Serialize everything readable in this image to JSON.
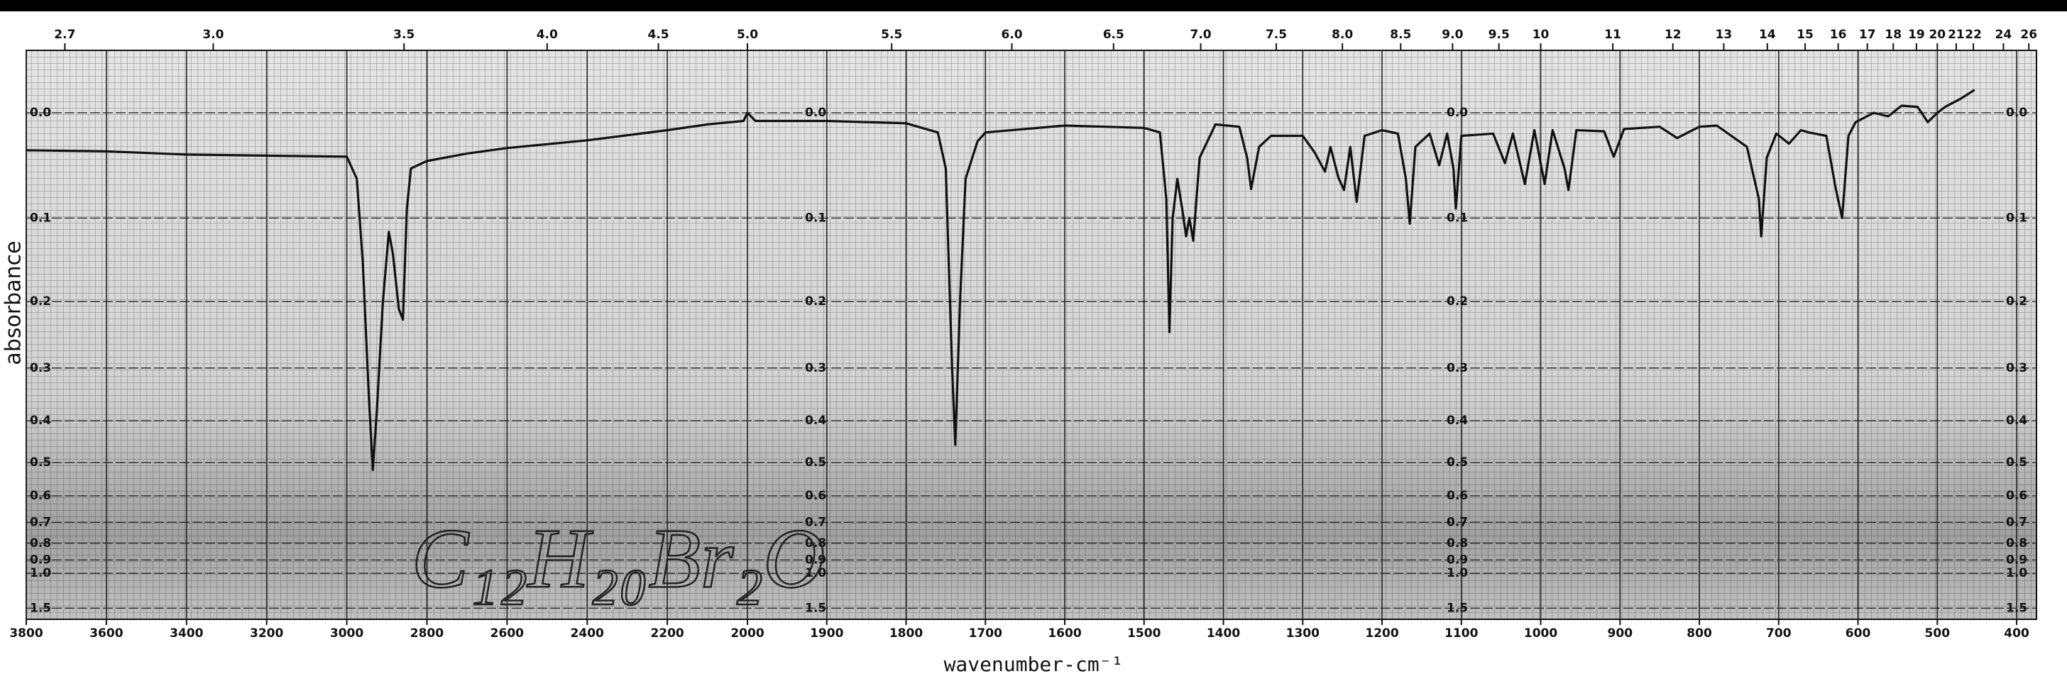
{
  "chart_data": {
    "type": "line",
    "xlabel": "wavenumber-cm⁻¹",
    "ylabel": "absorbance",
    "annotation": "C₁₂H₂₀Br₂O",
    "color": "#111111",
    "y_scale": "transmittance",
    "xlim": [
      3800,
      375
    ],
    "x_scale_break": 2000,
    "xticks": [
      3800,
      3600,
      3400,
      3200,
      3000,
      2800,
      2600,
      2400,
      2200,
      2000,
      1900,
      1800,
      1700,
      1600,
      1500,
      1400,
      1300,
      1200,
      1100,
      1000,
      900,
      800,
      700,
      600,
      500,
      400
    ],
    "x2ticks": [
      2.7,
      {
        "value": 3.0,
        "label": "3.0"
      },
      3.5,
      {
        "value": 4.0,
        "label": "4.0"
      },
      4.5,
      {
        "value": 5.0,
        "label": "5.0"
      },
      5.5,
      {
        "value": 6.0,
        "label": "6.0"
      },
      6.5,
      {
        "value": 7.0,
        "label": "7.0"
      },
      7.5,
      {
        "value": 8.0,
        "label": "8.0"
      },
      8.5,
      {
        "value": 9.0,
        "label": "9.0"
      },
      9.5,
      10,
      11,
      12,
      13,
      14,
      15,
      16,
      17,
      18,
      19,
      20,
      21,
      22,
      24,
      26
    ],
    "ylim": [
      -0.05,
      2
    ],
    "yticks": [
      {
        "value": 0,
        "label": "0.0"
      },
      0.1,
      0.2,
      0.3,
      0.4,
      0.5,
      0.6,
      0.7,
      0.8,
      0.9,
      {
        "value": 1,
        "label": "1.0"
      },
      1.5
    ],
    "grid": true,
    "x": [
      3800,
      3600,
      3400,
      3200,
      3000,
      2975,
      2960,
      2945,
      2935,
      2925,
      2910,
      2895,
      2885,
      2870,
      2860,
      2850,
      2840,
      2800,
      2700,
      2600,
      2400,
      2200,
      2100,
      2010,
      2000,
      1990,
      1900,
      1800,
      1760,
      1750,
      1742,
      1738,
      1732,
      1725,
      1710,
      1700,
      1600,
      1500,
      1480,
      1472,
      1468,
      1464,
      1458,
      1452,
      1447,
      1443,
      1438,
      1430,
      1410,
      1380,
      1370,
      1365,
      1355,
      1340,
      1300,
      1285,
      1272,
      1265,
      1255,
      1248,
      1240,
      1232,
      1222,
      1200,
      1180,
      1170,
      1165,
      1158,
      1140,
      1128,
      1118,
      1110,
      1107,
      1100,
      1060,
      1045,
      1035,
      1020,
      1008,
      995,
      985,
      970,
      965,
      955,
      920,
      908,
      895,
      850,
      828,
      800,
      778,
      740,
      725,
      722,
      715,
      703,
      687,
      672,
      662,
      640,
      628,
      620,
      612,
      603,
      580,
      562,
      545,
      525,
      512,
      500,
      490,
      470,
      453
    ],
    "values": [
      0.033,
      0.034,
      0.037,
      0.038,
      0.039,
      0.06,
      0.15,
      0.35,
      0.52,
      0.38,
      0.2,
      0.115,
      0.14,
      0.21,
      0.225,
      0.09,
      0.05,
      0.043,
      0.036,
      0.031,
      0.024,
      0.015,
      0.01,
      0.007,
      0.0,
      0.007,
      0.007,
      0.009,
      0.017,
      0.05,
      0.3,
      0.455,
      0.2,
      0.06,
      0.025,
      0.017,
      0.011,
      0.013,
      0.017,
      0.08,
      0.243,
      0.1,
      0.06,
      0.09,
      0.12,
      0.1,
      0.125,
      0.04,
      0.01,
      0.012,
      0.04,
      0.07,
      0.03,
      0.02,
      0.02,
      0.035,
      0.053,
      0.03,
      0.059,
      0.071,
      0.03,
      0.083,
      0.02,
      0.015,
      0.018,
      0.06,
      0.106,
      0.03,
      0.018,
      0.047,
      0.018,
      0.05,
      0.09,
      0.02,
      0.018,
      0.045,
      0.018,
      0.065,
      0.015,
      0.065,
      0.015,
      0.05,
      0.071,
      0.015,
      0.016,
      0.039,
      0.014,
      0.012,
      0.022,
      0.012,
      0.011,
      0.03,
      0.08,
      0.12,
      0.04,
      0.018,
      0.027,
      0.015,
      0.017,
      0.02,
      0.07,
      0.1,
      0.02,
      0.008,
      0.0,
      0.003,
      -0.006,
      -0.005,
      0.008,
      0.0,
      -0.005,
      -0.012,
      -0.019
    ]
  }
}
